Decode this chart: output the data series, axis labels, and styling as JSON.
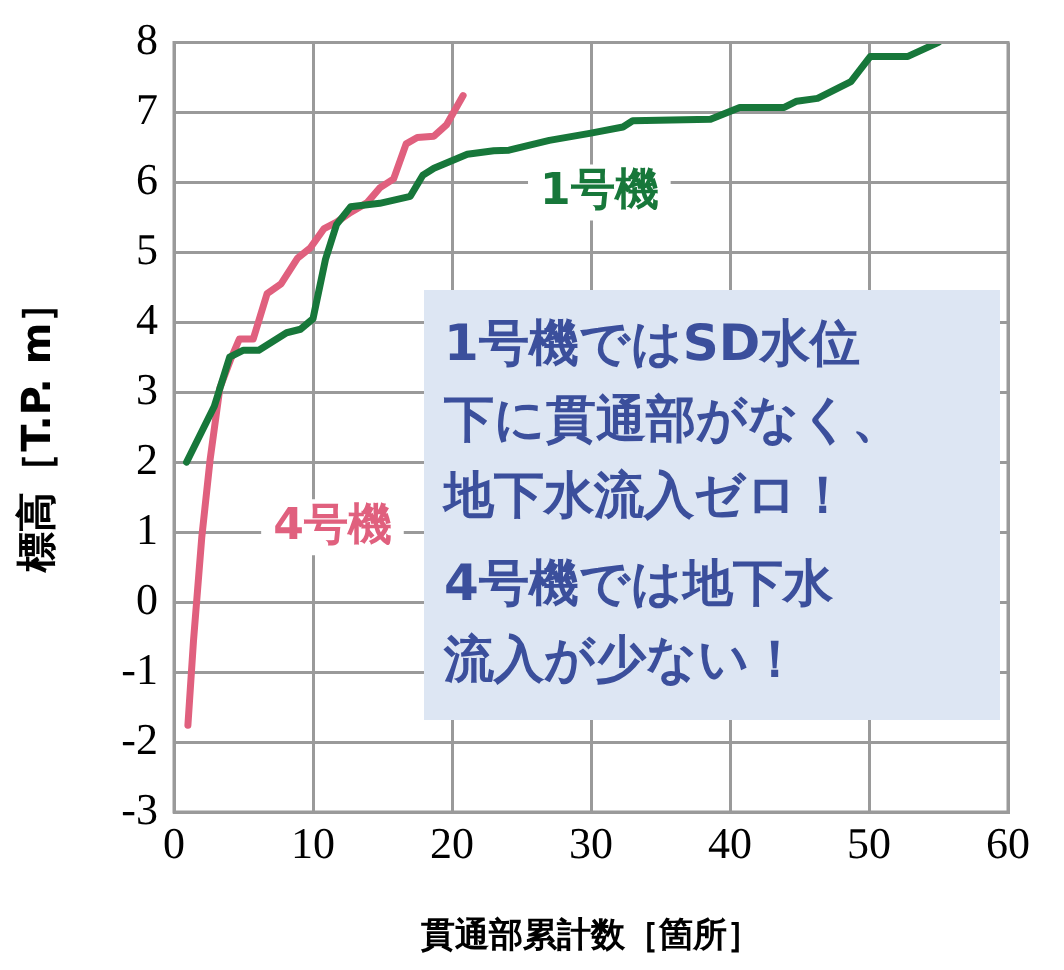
{
  "chart_data": {
    "type": "line",
    "xlabel": "貫通部累計数［箇所］",
    "ylabel": "標高［T.P. m］",
    "xlim": [
      0,
      60
    ],
    "xticks": [
      0,
      10,
      20,
      30,
      40,
      50,
      60
    ],
    "ylim": [
      -3,
      8
    ],
    "yticks": [
      -3,
      -2,
      -1,
      0,
      1,
      2,
      3,
      4,
      5,
      6,
      7,
      8
    ],
    "grid": true,
    "legend": false,
    "marker": "none",
    "line_style": "solid",
    "series": [
      {
        "name": "1号機",
        "color": "#17773a",
        "x": [
          0.9,
          2.9,
          4.0,
          5.0,
          6.1,
          8.1,
          9.1,
          10.0,
          10.9,
          11.7,
          12.7,
          14.8,
          17.0,
          17.9,
          18.7,
          19.9,
          21.1,
          23.0,
          24.1,
          27.0,
          29.9,
          32.3,
          33.0,
          38.6,
          40.7,
          43.9,
          44.8,
          46.3,
          48.7,
          50.1,
          52.8,
          55.0
        ],
        "values": [
          2.0,
          2.8,
          3.5,
          3.6,
          3.6,
          3.85,
          3.9,
          4.05,
          4.9,
          5.4,
          5.65,
          5.7,
          5.8,
          6.1,
          6.2,
          6.3,
          6.4,
          6.45,
          6.46,
          6.6,
          6.7,
          6.79,
          6.88,
          6.9,
          7.07,
          7.07,
          7.16,
          7.2,
          7.44,
          7.8,
          7.8,
          8.0
        ]
      },
      {
        "name": "4号機",
        "color": "#e0607e",
        "x": [
          1.0,
          1.4,
          2.0,
          2.6,
          3.3,
          4.1,
          4.7,
          5.7,
          6.7,
          7.7,
          8.9,
          9.8,
          10.8,
          11.7,
          12.7,
          13.9,
          14.8,
          15.8,
          16.7,
          17.5,
          18.7,
          19.6,
          20.8
        ],
        "values": [
          -1.76,
          -0.56,
          0.93,
          2.04,
          3.06,
          3.48,
          3.76,
          3.76,
          4.41,
          4.55,
          4.92,
          5.06,
          5.34,
          5.43,
          5.57,
          5.71,
          5.92,
          6.05,
          6.55,
          6.64,
          6.66,
          6.82,
          7.24
        ]
      }
    ],
    "annotations": [
      "1号機ではSD水位下に貫通部がなく、地下水流入ゼロ！",
      "4号機では地下水流入が少ない！"
    ]
  }
}
